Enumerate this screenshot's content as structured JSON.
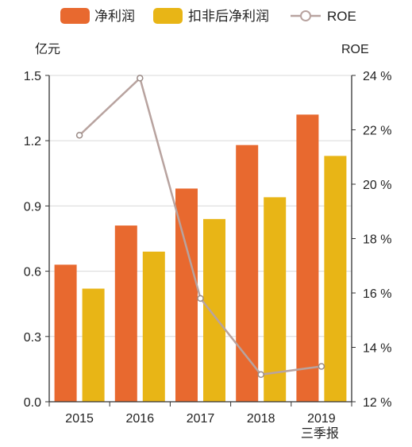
{
  "chart_data": {
    "type": "bar",
    "categories": [
      "2015",
      "2016",
      "2017",
      "2018",
      "2019"
    ],
    "category_sublabels": [
      "",
      "",
      "",
      "",
      "三季报"
    ],
    "series": [
      {
        "name": "净利润",
        "type": "bar",
        "axis": "left",
        "color": "#E8692F",
        "values": [
          0.63,
          0.81,
          0.98,
          1.18,
          1.32
        ]
      },
      {
        "name": "扣非后净利润",
        "type": "bar",
        "axis": "left",
        "color": "#E8B516",
        "values": [
          0.52,
          0.69,
          0.84,
          0.94,
          1.13
        ]
      },
      {
        "name": "ROE",
        "type": "line",
        "axis": "right",
        "color": "#B8A39F",
        "unit": "%",
        "values": [
          21.8,
          23.9,
          15.8,
          13.0,
          13.3
        ]
      }
    ],
    "left_axis": {
      "unit_label": "亿元",
      "ylim": [
        0,
        1.5
      ],
      "ticks": [
        "0.0",
        "0.3",
        "0.6",
        "0.9",
        "1.2",
        "1.5"
      ]
    },
    "right_axis": {
      "unit_label": "ROE",
      "ylim": [
        12,
        24
      ],
      "ticks": [
        "12 %",
        "14 %",
        "16 %",
        "18 %",
        "20 %",
        "22 %",
        "24 %"
      ]
    },
    "grid": true,
    "legend_position": "top"
  }
}
